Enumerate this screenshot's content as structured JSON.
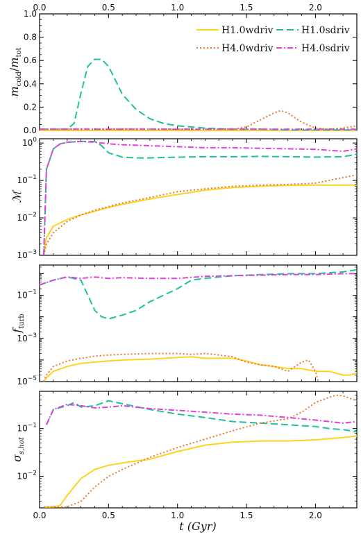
{
  "figure": {
    "xlabel": "t (Gyr)",
    "top_axis_ticks": [
      "0.0",
      "0.5",
      "1.0",
      "1.5",
      "2.0"
    ],
    "bottom_axis_ticks": [
      "0.0",
      "0.5",
      "1.0",
      "1.5",
      "2.0"
    ]
  },
  "legend": {
    "placement": "top-right of top panel",
    "entries": [
      {
        "label": "H1.0wdriv",
        "color": "#FFD21F",
        "style": "solid"
      },
      {
        "label": "H1.0sdriv",
        "color": "#1FBF9F",
        "style": "dashed"
      },
      {
        "label": "H4.0wdriv",
        "color": "#E8792B",
        "style": "dotted"
      },
      {
        "label": "H4.0sdriv",
        "color": "#E23FD8",
        "style": "dashdot"
      }
    ]
  },
  "chart_data": [
    {
      "type": "line",
      "ylabel": "m_cold/m_tot",
      "yscale": "linear",
      "ylim": [
        0,
        1.0
      ],
      "xlim": [
        0,
        2.3
      ],
      "yticks": [
        "0.0",
        "0.2",
        "0.4",
        "0.6",
        "0.8",
        "1.0"
      ],
      "series": [
        {
          "name": "H1.0wdriv",
          "x": [
            0,
            2.3
          ],
          "y": [
            0,
            0
          ]
        },
        {
          "name": "H1.0sdriv",
          "x": [
            0,
            0.2,
            0.25,
            0.3,
            0.35,
            0.4,
            0.45,
            0.5,
            0.55,
            0.6,
            0.7,
            0.8,
            0.9,
            1.0,
            1.1,
            1.2,
            1.3,
            1.4,
            1.6,
            1.8,
            2.0,
            2.2,
            2.3
          ],
          "y": [
            0.01,
            0.01,
            0.06,
            0.32,
            0.55,
            0.61,
            0.61,
            0.55,
            0.43,
            0.31,
            0.18,
            0.1,
            0.06,
            0.04,
            0.03,
            0.02,
            0.015,
            0.01,
            0.01,
            0.005,
            0.005,
            0.005,
            0.005
          ]
        },
        {
          "name": "H4.0wdriv",
          "x": [
            0,
            1.35,
            1.4,
            1.5,
            1.6,
            1.7,
            1.75,
            1.8,
            1.9,
            2.0,
            2.1,
            2.2,
            2.3
          ],
          "y": [
            0.01,
            0.01,
            0.01,
            0.03,
            0.09,
            0.15,
            0.17,
            0.15,
            0.07,
            0.02,
            0.01,
            0.02,
            0.04
          ]
        },
        {
          "name": "H4.0sdriv",
          "x": [
            0,
            2.3
          ],
          "y": [
            0.01,
            0.01
          ]
        }
      ]
    },
    {
      "type": "line",
      "ylabel": "M",
      "yscale": "log",
      "ylim": [
        0.001,
        1.3
      ],
      "xlim": [
        0,
        2.3
      ],
      "yticks": [
        "10^0",
        "10^-1",
        "10^-2",
        "10^-3"
      ],
      "series": [
        {
          "name": "H1.0wdriv",
          "x": [
            0.03,
            0.05,
            0.1,
            0.2,
            0.3,
            0.4,
            0.5,
            0.6,
            0.8,
            1.0,
            1.2,
            1.4,
            1.6,
            1.8,
            2.0,
            2.2,
            2.3
          ],
          "y": [
            0.001,
            0.003,
            0.006,
            0.009,
            0.012,
            0.015,
            0.019,
            0.023,
            0.032,
            0.042,
            0.055,
            0.065,
            0.07,
            0.074,
            0.075,
            0.075,
            0.075
          ]
        },
        {
          "name": "H1.0sdriv",
          "x": [
            0.03,
            0.05,
            0.1,
            0.15,
            0.2,
            0.3,
            0.4,
            0.45,
            0.5,
            0.6,
            0.7,
            0.8,
            1.0,
            1.2,
            1.4,
            1.6,
            1.8,
            2.0,
            2.2,
            2.3
          ],
          "y": [
            0.001,
            0.2,
            0.7,
            0.95,
            1.05,
            1.1,
            1.1,
            0.85,
            0.55,
            0.42,
            0.4,
            0.4,
            0.42,
            0.43,
            0.43,
            0.44,
            0.43,
            0.42,
            0.43,
            0.5
          ]
        },
        {
          "name": "H4.0wdriv",
          "x": [
            0.03,
            0.05,
            0.1,
            0.2,
            0.3,
            0.4,
            0.5,
            0.6,
            0.8,
            1.0,
            1.2,
            1.4,
            1.6,
            1.8,
            2.0,
            2.1,
            2.2,
            2.3
          ],
          "y": [
            0.001,
            0.002,
            0.004,
            0.008,
            0.012,
            0.016,
            0.02,
            0.025,
            0.035,
            0.05,
            0.06,
            0.07,
            0.075,
            0.078,
            0.085,
            0.1,
            0.12,
            0.14
          ]
        },
        {
          "name": "H4.0sdriv",
          "x": [
            0.03,
            0.05,
            0.1,
            0.15,
            0.2,
            0.3,
            0.4,
            0.5,
            0.6,
            0.8,
            1.0,
            1.2,
            1.4,
            1.6,
            1.8,
            2.0,
            2.2,
            2.3
          ],
          "y": [
            0.001,
            0.2,
            0.7,
            0.95,
            1.05,
            1.1,
            1.05,
            0.95,
            0.9,
            0.85,
            0.8,
            0.75,
            0.75,
            0.72,
            0.7,
            0.68,
            0.6,
            0.7
          ]
        }
      ]
    },
    {
      "type": "line",
      "ylabel": "f_turb",
      "yscale": "log",
      "ylim": [
        1e-05,
        2.5
      ],
      "xlim": [
        0,
        2.3
      ],
      "yticks": [
        "10^-1",
        "10^-3",
        "10^-5"
      ],
      "series": [
        {
          "name": "H1.0wdriv",
          "x": [
            0.03,
            0.05,
            0.1,
            0.2,
            0.3,
            0.4,
            0.5,
            0.6,
            0.8,
            1.0,
            1.1,
            1.2,
            1.4,
            1.5,
            1.6,
            1.7,
            1.8,
            1.9,
            2.0,
            2.1,
            2.2,
            2.25,
            2.3
          ],
          "y": [
            1e-05,
            1.5e-05,
            3e-05,
            5e-05,
            7e-05,
            8e-05,
            9e-05,
            0.0001,
            0.00011,
            0.00013,
            0.00014,
            0.00012,
            0.00012,
            9e-05,
            6e-05,
            5e-05,
            4e-05,
            4e-05,
            3e-05,
            3e-05,
            2e-05,
            2e-05,
            2.5e-05
          ]
        },
        {
          "name": "H1.0sdriv",
          "x": [
            0,
            0.1,
            0.2,
            0.3,
            0.35,
            0.4,
            0.45,
            0.5,
            0.6,
            0.7,
            0.8,
            0.9,
            1.0,
            1.1,
            1.2,
            1.4,
            1.6,
            1.8,
            2.0,
            2.2,
            2.3
          ],
          "y": [
            0.3,
            0.5,
            0.7,
            0.5,
            0.1,
            0.02,
            0.01,
            0.008,
            0.012,
            0.02,
            0.05,
            0.1,
            0.2,
            0.5,
            0.6,
            0.8,
            0.9,
            1.0,
            1.0,
            1.2,
            1.5
          ]
        },
        {
          "name": "H4.0wdriv",
          "x": [
            0.03,
            0.05,
            0.1,
            0.2,
            0.3,
            0.4,
            0.5,
            0.6,
            0.8,
            1.0,
            1.1,
            1.2,
            1.3,
            1.4,
            1.5,
            1.6,
            1.7,
            1.8,
            1.9,
            1.95,
            2.0,
            2.02
          ],
          "y": [
            1e-05,
            2e-05,
            5e-05,
            9e-05,
            0.00012,
            0.00015,
            0.00017,
            0.00018,
            0.0002,
            0.0002,
            0.00018,
            0.0002,
            0.00017,
            0.00014,
            8e-05,
            6e-05,
            5e-05,
            3e-05,
            8e-05,
            0.0001,
            3e-05,
            1e-05
          ]
        },
        {
          "name": "H4.0sdriv",
          "x": [
            0,
            0.1,
            0.2,
            0.3,
            0.4,
            0.5,
            0.6,
            0.8,
            1.0,
            1.2,
            1.4,
            1.6,
            1.8,
            2.0,
            2.2,
            2.3
          ],
          "y": [
            0.3,
            0.5,
            0.7,
            0.6,
            0.7,
            0.6,
            0.65,
            0.6,
            0.6,
            0.75,
            0.8,
            0.85,
            0.9,
            0.9,
            1.0,
            1.0
          ]
        }
      ]
    },
    {
      "type": "line",
      "ylabel": "σ_s,hot",
      "yscale": "log",
      "ylim": [
        0.0022,
        0.6
      ],
      "xlim": [
        0,
        2.3
      ],
      "yticks": [
        "10^-1",
        "10^-2"
      ],
      "series": [
        {
          "name": "H1.0wdriv",
          "x": [
            0.03,
            0.1,
            0.15,
            0.2,
            0.3,
            0.4,
            0.5,
            0.6,
            0.7,
            0.8,
            1.0,
            1.2,
            1.4,
            1.6,
            1.8,
            2.0,
            2.2,
            2.3
          ],
          "y": [
            0.0023,
            0.0023,
            0.0025,
            0.004,
            0.009,
            0.014,
            0.017,
            0.019,
            0.021,
            0.023,
            0.033,
            0.045,
            0.052,
            0.055,
            0.055,
            0.058,
            0.065,
            0.07
          ]
        },
        {
          "name": "H1.0sdriv",
          "x": [
            0.05,
            0.1,
            0.2,
            0.25,
            0.3,
            0.4,
            0.5,
            0.6,
            0.8,
            1.0,
            1.2,
            1.4,
            1.6,
            1.8,
            2.0,
            2.1,
            2.2,
            2.3
          ],
          "y": [
            0.12,
            0.25,
            0.3,
            0.35,
            0.28,
            0.3,
            0.38,
            0.33,
            0.25,
            0.2,
            0.17,
            0.14,
            0.13,
            0.12,
            0.11,
            0.1,
            0.095,
            0.085
          ]
        },
        {
          "name": "H4.0wdriv",
          "x": [
            0.03,
            0.1,
            0.2,
            0.3,
            0.4,
            0.5,
            0.6,
            0.8,
            1.0,
            1.2,
            1.4,
            1.6,
            1.8,
            1.9,
            2.0,
            2.1,
            2.15,
            2.2,
            2.3
          ],
          "y": [
            0.0023,
            0.0023,
            0.0023,
            0.003,
            0.006,
            0.01,
            0.014,
            0.025,
            0.04,
            0.06,
            0.09,
            0.13,
            0.16,
            0.22,
            0.35,
            0.45,
            0.5,
            0.48,
            0.38
          ]
        },
        {
          "name": "H4.0sdriv",
          "x": [
            0.05,
            0.1,
            0.2,
            0.3,
            0.4,
            0.5,
            0.6,
            0.8,
            1.0,
            1.2,
            1.4,
            1.6,
            1.8,
            2.0,
            2.2,
            2.3
          ],
          "y": [
            0.12,
            0.25,
            0.32,
            0.3,
            0.27,
            0.28,
            0.3,
            0.26,
            0.24,
            0.22,
            0.2,
            0.19,
            0.17,
            0.15,
            0.13,
            0.14
          ]
        }
      ]
    }
  ]
}
